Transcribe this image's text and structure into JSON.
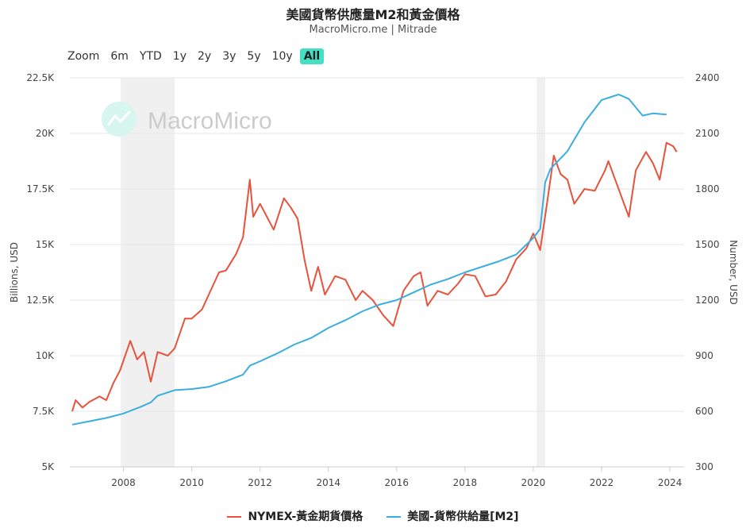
{
  "colors": {
    "gold": "#e8523a",
    "m2": "#3aaee0",
    "band": "#f0f0f0",
    "grid": "#e6e6e6",
    "accent": "#45e0c4"
  },
  "watermark": "MacroMicro",
  "range_selector": {
    "label": "Zoom",
    "buttons": [
      "6m",
      "YTD",
      "1y",
      "2y",
      "3y",
      "5y",
      "10y",
      "All"
    ],
    "selected": "All"
  },
  "chart_data": {
    "type": "line",
    "title": "美國貨幣供應量M2和黃金價格",
    "subtitle": "MacroMicro.me | Mitrade",
    "ylabel_left": "Billions, USD",
    "ylabel_right": "Number, USD",
    "ylim_left": [
      5000,
      22500
    ],
    "ylim_right": [
      300,
      2400
    ],
    "yticks_left": [
      "5K",
      "7.5K",
      "10K",
      "12.5K",
      "15K",
      "17.5K",
      "20K",
      "22.5K"
    ],
    "yticks_right": [
      "300",
      "600",
      "900",
      "1200",
      "1500",
      "1800",
      "2100",
      "2400"
    ],
    "xticks": [
      "2008",
      "2010",
      "2012",
      "2014",
      "2016",
      "2018",
      "2020",
      "2022",
      "2024"
    ],
    "xlim": [
      2006.5,
      2024.3
    ],
    "recessions": [
      [
        2007.92,
        2009.5
      ],
      [
        2020.1,
        2020.35
      ]
    ],
    "grid": true,
    "legend": "bottom",
    "series": [
      {
        "name": "NYMEX-黃金期貨價格",
        "axis": "right",
        "points": [
          [
            2006.5,
            600
          ],
          [
            2006.6,
            660
          ],
          [
            2006.8,
            620
          ],
          [
            2007,
            650
          ],
          [
            2007.3,
            680
          ],
          [
            2007.5,
            660
          ],
          [
            2007.7,
            750
          ],
          [
            2007.9,
            820
          ],
          [
            2008.2,
            980
          ],
          [
            2008.4,
            880
          ],
          [
            2008.6,
            920
          ],
          [
            2008.8,
            760
          ],
          [
            2009,
            920
          ],
          [
            2009.3,
            900
          ],
          [
            2009.5,
            940
          ],
          [
            2009.8,
            1100
          ],
          [
            2010,
            1100
          ],
          [
            2010.3,
            1150
          ],
          [
            2010.5,
            1230
          ],
          [
            2010.8,
            1350
          ],
          [
            2011,
            1360
          ],
          [
            2011.3,
            1450
          ],
          [
            2011.5,
            1540
          ],
          [
            2011.7,
            1850
          ],
          [
            2011.8,
            1650
          ],
          [
            2012,
            1720
          ],
          [
            2012.2,
            1650
          ],
          [
            2012.4,
            1580
          ],
          [
            2012.7,
            1750
          ],
          [
            2012.9,
            1700
          ],
          [
            2013.1,
            1640
          ],
          [
            2013.3,
            1420
          ],
          [
            2013.5,
            1250
          ],
          [
            2013.7,
            1380
          ],
          [
            2013.9,
            1230
          ],
          [
            2014.2,
            1330
          ],
          [
            2014.5,
            1310
          ],
          [
            2014.8,
            1200
          ],
          [
            2015,
            1250
          ],
          [
            2015.3,
            1200
          ],
          [
            2015.6,
            1120
          ],
          [
            2015.9,
            1060
          ],
          [
            2016.2,
            1250
          ],
          [
            2016.5,
            1330
          ],
          [
            2016.7,
            1350
          ],
          [
            2016.9,
            1170
          ],
          [
            2017.2,
            1250
          ],
          [
            2017.5,
            1230
          ],
          [
            2017.8,
            1290
          ],
          [
            2018,
            1340
          ],
          [
            2018.3,
            1330
          ],
          [
            2018.6,
            1220
          ],
          [
            2018.9,
            1230
          ],
          [
            2019.2,
            1300
          ],
          [
            2019.5,
            1420
          ],
          [
            2019.8,
            1480
          ],
          [
            2020,
            1560
          ],
          [
            2020.2,
            1470
          ],
          [
            2020.4,
            1720
          ],
          [
            2020.6,
            1980
          ],
          [
            2020.8,
            1880
          ],
          [
            2021,
            1850
          ],
          [
            2021.2,
            1720
          ],
          [
            2021.5,
            1800
          ],
          [
            2021.8,
            1790
          ],
          [
            2022.1,
            1900
          ],
          [
            2022.2,
            1950
          ],
          [
            2022.4,
            1850
          ],
          [
            2022.6,
            1750
          ],
          [
            2022.8,
            1650
          ],
          [
            2023,
            1900
          ],
          [
            2023.3,
            2000
          ],
          [
            2023.5,
            1940
          ],
          [
            2023.7,
            1850
          ],
          [
            2023.9,
            2050
          ],
          [
            2024.1,
            2030
          ],
          [
            2024.2,
            2000
          ]
        ]
      },
      {
        "name": "美國-貨幣供給量[M2]",
        "axis": "left",
        "points": [
          [
            2006.5,
            6900
          ],
          [
            2007,
            7050
          ],
          [
            2007.5,
            7200
          ],
          [
            2008,
            7400
          ],
          [
            2008.5,
            7700
          ],
          [
            2008.8,
            7900
          ],
          [
            2009,
            8200
          ],
          [
            2009.5,
            8450
          ],
          [
            2010,
            8500
          ],
          [
            2010.5,
            8600
          ],
          [
            2011,
            8850
          ],
          [
            2011.5,
            9150
          ],
          [
            2011.7,
            9550
          ],
          [
            2012,
            9750
          ],
          [
            2012.5,
            10100
          ],
          [
            2013,
            10500
          ],
          [
            2013.5,
            10800
          ],
          [
            2014,
            11250
          ],
          [
            2014.5,
            11600
          ],
          [
            2015,
            12000
          ],
          [
            2015.5,
            12300
          ],
          [
            2016,
            12500
          ],
          [
            2016.5,
            12850
          ],
          [
            2017,
            13200
          ],
          [
            2017.5,
            13450
          ],
          [
            2018,
            13750
          ],
          [
            2018.5,
            14000
          ],
          [
            2019,
            14250
          ],
          [
            2019.5,
            14550
          ],
          [
            2020,
            15300
          ],
          [
            2020.2,
            15700
          ],
          [
            2020.35,
            17800
          ],
          [
            2020.5,
            18400
          ],
          [
            2021,
            19200
          ],
          [
            2021.5,
            20500
          ],
          [
            2022,
            21500
          ],
          [
            2022.5,
            21750
          ],
          [
            2022.8,
            21550
          ],
          [
            2023.2,
            20800
          ],
          [
            2023.5,
            20900
          ],
          [
            2023.9,
            20850
          ]
        ]
      }
    ]
  }
}
